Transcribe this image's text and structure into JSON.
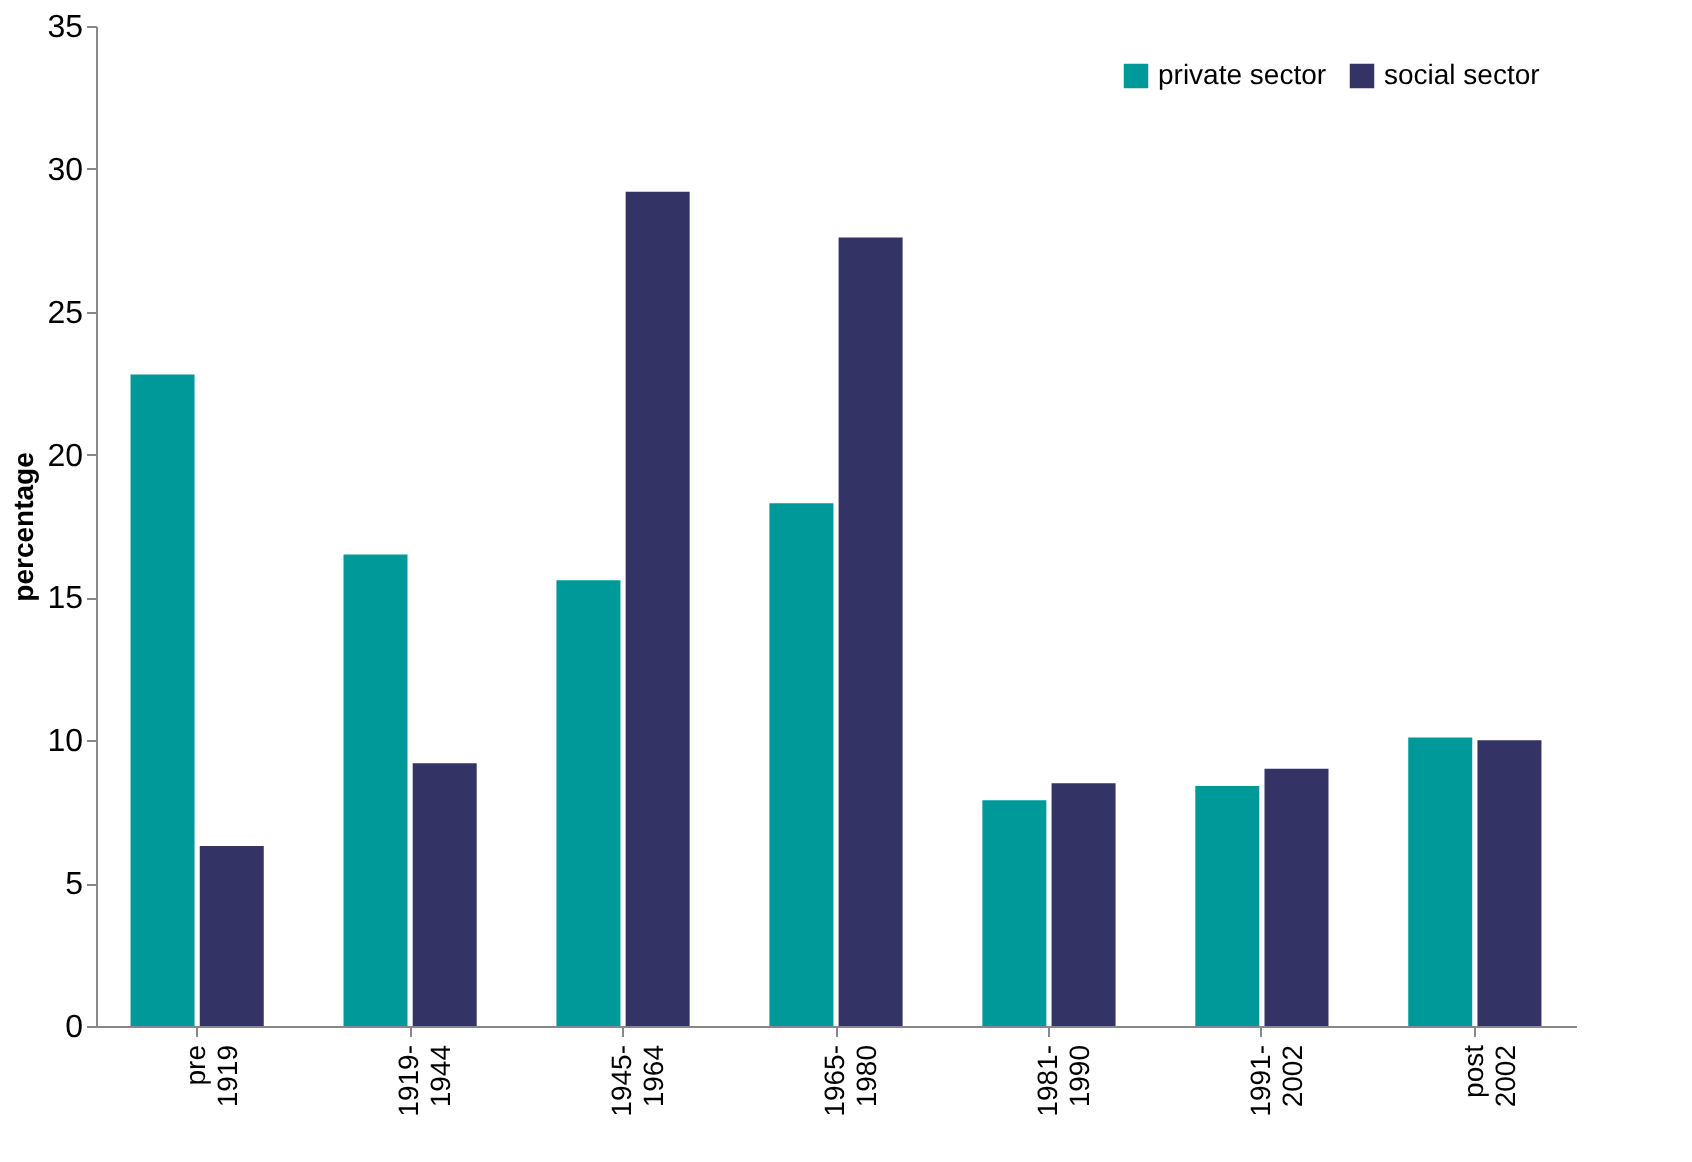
{
  "chart_data": {
    "type": "bar",
    "ylabel": "percentage",
    "categories": [
      "pre\n1919",
      "1919-\n1944",
      "1945-\n1964",
      "1965-\n1980",
      "1981-\n1990",
      "1991-\n2002",
      "post\n2002"
    ],
    "series": [
      {
        "name": "private sector",
        "color": "#009999",
        "values": [
          22.8,
          16.5,
          15.6,
          18.3,
          7.9,
          8.4,
          10.1
        ]
      },
      {
        "name": "social sector",
        "color": "#333366",
        "values": [
          6.3,
          9.2,
          29.2,
          27.6,
          8.5,
          9.0,
          10.0
        ]
      }
    ],
    "ylim": [
      0,
      35
    ],
    "yticks": [
      0,
      5,
      10,
      15,
      20,
      25,
      30,
      35
    ],
    "grid": false,
    "legend": "top right"
  }
}
